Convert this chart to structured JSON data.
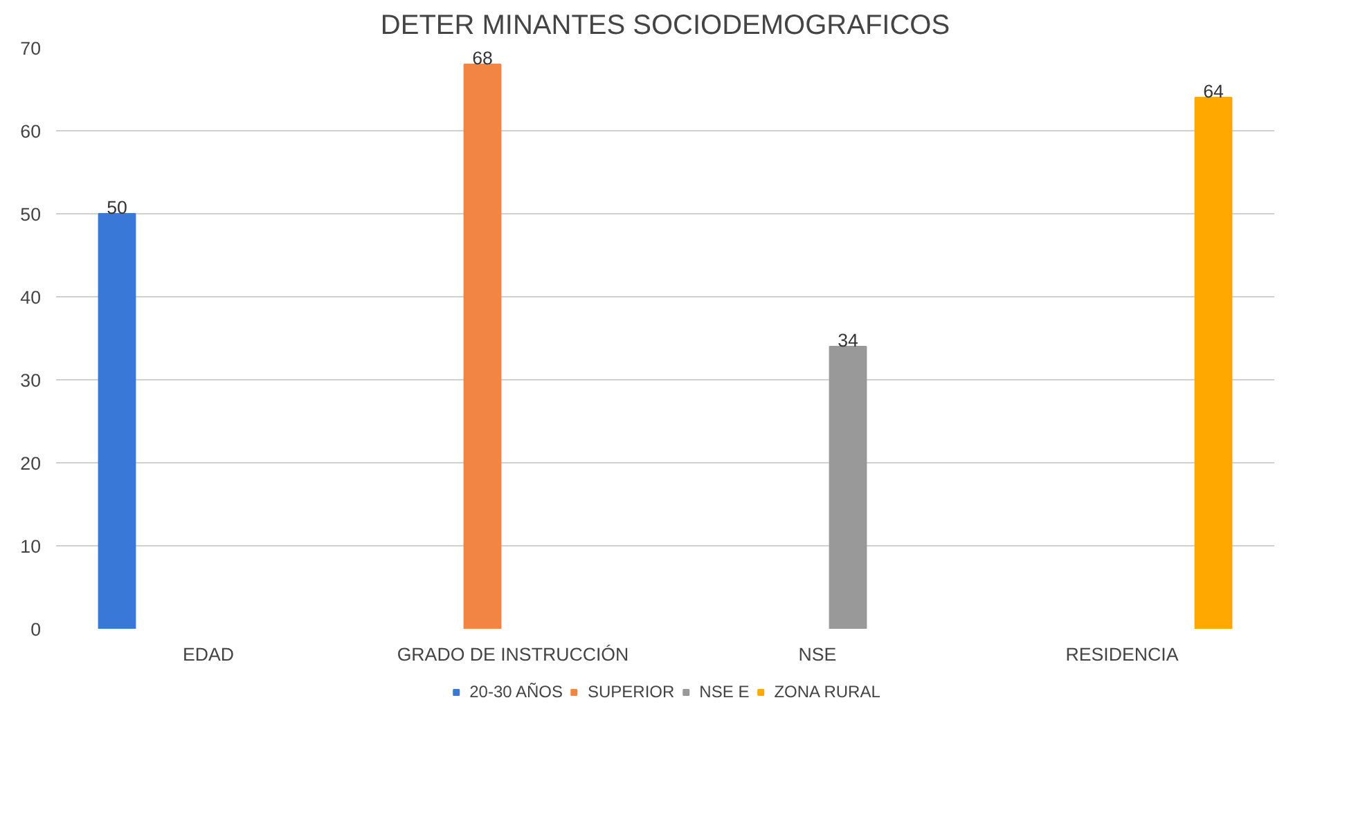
{
  "chart_data": {
    "type": "bar",
    "title": "DETER MINANTES SOCIODEMOGRAFICOS",
    "categories": [
      "EDAD",
      "GRADO DE INSTRUCCIÓN",
      "NSE",
      "RESIDENCIA"
    ],
    "series": [
      {
        "name": "20-30 AÑOS",
        "color": "#3a78d8",
        "values": [
          50,
          null,
          null,
          null
        ]
      },
      {
        "name": "SUPERIOR",
        "color": "#f28444",
        "values": [
          null,
          68,
          null,
          null
        ]
      },
      {
        "name": "NSE E",
        "color": "#999999",
        "values": [
          null,
          null,
          34,
          null
        ]
      },
      {
        "name": "ZONA RURAL",
        "color": "#ffa800",
        "values": [
          null,
          null,
          null,
          64
        ]
      }
    ],
    "ylim": [
      0,
      70
    ],
    "yticks": [
      0,
      10,
      20,
      30,
      40,
      50,
      60,
      70
    ],
    "grid": "y",
    "legend": "bottom",
    "data_labels": true
  }
}
